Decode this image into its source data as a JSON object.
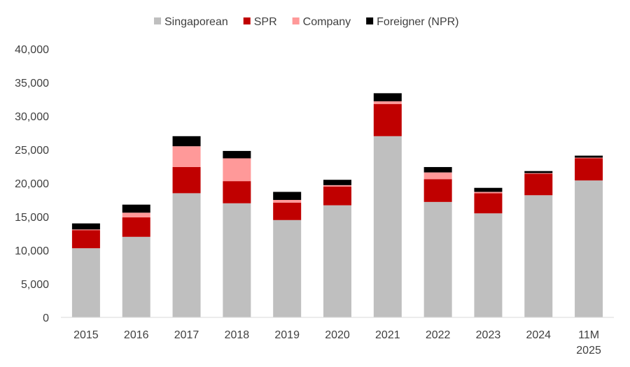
{
  "chart_data": {
    "type": "bar",
    "stacked": true,
    "title": "",
    "xlabel": "",
    "ylabel": "",
    "ylim": [
      0,
      40000
    ],
    "yticks": [
      0,
      5000,
      10000,
      15000,
      20000,
      25000,
      30000,
      35000,
      40000
    ],
    "ytick_labels": [
      "0",
      "5,000",
      "10,000",
      "15,000",
      "20,000",
      "25,000",
      "30,000",
      "35,000",
      "40,000"
    ],
    "categories": [
      "2015",
      "2016",
      "2017",
      "2018",
      "2019",
      "2020",
      "2021",
      "2022",
      "2023",
      "2024",
      "11M 2025"
    ],
    "legend_position": "top-center",
    "grid": false,
    "series": [
      {
        "name": "Singaporean",
        "color": "#bfbfbf",
        "values": [
          10300,
          12000,
          18500,
          17000,
          14500,
          16700,
          27000,
          17200,
          15500,
          18200,
          20400
        ]
      },
      {
        "name": "SPR",
        "color": "#c00000",
        "values": [
          2700,
          2900,
          3900,
          3300,
          2600,
          2800,
          4800,
          3400,
          3000,
          3200,
          3300
        ]
      },
      {
        "name": "Company",
        "color": "#ff9999",
        "values": [
          100,
          700,
          3100,
          3400,
          400,
          200,
          400,
          1000,
          200,
          100,
          100
        ]
      },
      {
        "name": "Foreigner (NPR)",
        "color": "#000000",
        "values": [
          900,
          1200,
          1500,
          1100,
          1200,
          800,
          1200,
          800,
          600,
          300,
          300
        ]
      }
    ]
  }
}
